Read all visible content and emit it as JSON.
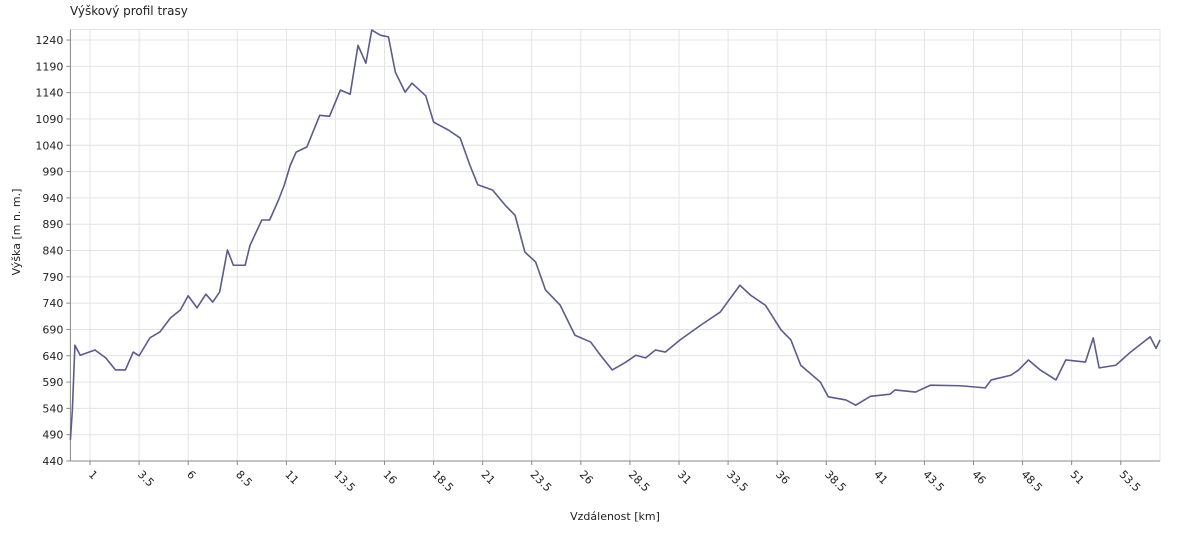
{
  "chart_data": {
    "type": "line",
    "title": "Výškový profil trasy",
    "x_label": "Vzdálenost [km]",
    "y_label": "Výška [m n. m.]",
    "grid": true,
    "xlim": [
      0,
      55.5
    ],
    "ylim": [
      440,
      1260
    ],
    "xticks": [
      1,
      3.5,
      6,
      8.5,
      11,
      13.5,
      16,
      18.5,
      21,
      23.5,
      26,
      28.5,
      31,
      33.5,
      36,
      38.5,
      41,
      43.5,
      46,
      48.5,
      51,
      53.5
    ],
    "yticks": [
      440,
      490,
      540,
      590,
      640,
      690,
      740,
      790,
      840,
      890,
      940,
      990,
      1040,
      1090,
      1140,
      1190,
      1240
    ],
    "series": [
      {
        "name": "Výška",
        "color": "#5b5b8e",
        "x": [
          0,
          0.1,
          0.23,
          0.5,
          1.25,
          1.8,
          2.3,
          2.8,
          3.2,
          3.5,
          4.05,
          4.55,
          5.1,
          5.6,
          6.0,
          6.45,
          6.9,
          7.25,
          7.6,
          8.0,
          8.3,
          8.9,
          9.15,
          9.75,
          10.15,
          10.6,
          10.9,
          11.2,
          11.5,
          12.05,
          12.7,
          13.2,
          13.75,
          14.25,
          14.65,
          15.05,
          15.35,
          15.8,
          16.2,
          16.55,
          17.05,
          17.4,
          18.1,
          18.5,
          19.25,
          19.85,
          20.35,
          20.75,
          21.5,
          22.15,
          22.65,
          23.15,
          23.7,
          24.2,
          24.95,
          25.7,
          26.5,
          27.0,
          27.6,
          28.3,
          28.8,
          29.3,
          29.8,
          30.3,
          31.05,
          32.1,
          33.1,
          34.1,
          34.65,
          35.4,
          36.2,
          36.7,
          37.2,
          38.2,
          38.6,
          39.5,
          40.0,
          40.75,
          41.75,
          42.0,
          43.05,
          43.8,
          45.35,
          46.6,
          46.9,
          47.9,
          48.3,
          48.8,
          49.4,
          50.2,
          50.7,
          51.7,
          52.1,
          52.4,
          53.25,
          54.0,
          55.0,
          55.3,
          55.5
        ],
        "values": [
          480,
          537,
          660,
          641,
          651,
          636,
          613,
          613,
          647,
          640,
          674,
          685,
          712,
          727,
          754,
          731,
          757,
          742,
          761,
          841,
          812,
          812,
          850,
          898,
          898,
          936,
          965,
          1002,
          1027,
          1037,
          1097,
          1095,
          1145,
          1137,
          1230,
          1196,
          1259,
          1249,
          1246,
          1179,
          1141,
          1158,
          1134,
          1084,
          1069,
          1054,
          1002,
          965,
          955,
          926,
          907,
          837,
          818,
          765,
          736,
          679,
          666,
          641,
          613,
          628,
          641,
          636,
          651,
          647,
          670,
          698,
          723,
          774,
          755,
          736,
          689,
          670,
          622,
          590,
          562,
          556,
          546,
          563,
          567,
          575,
          571,
          584,
          583,
          579,
          594,
          603,
          613,
          632,
          613,
          594,
          632,
          628,
          674,
          617,
          622,
          647,
          676,
          654,
          670
        ]
      }
    ]
  }
}
